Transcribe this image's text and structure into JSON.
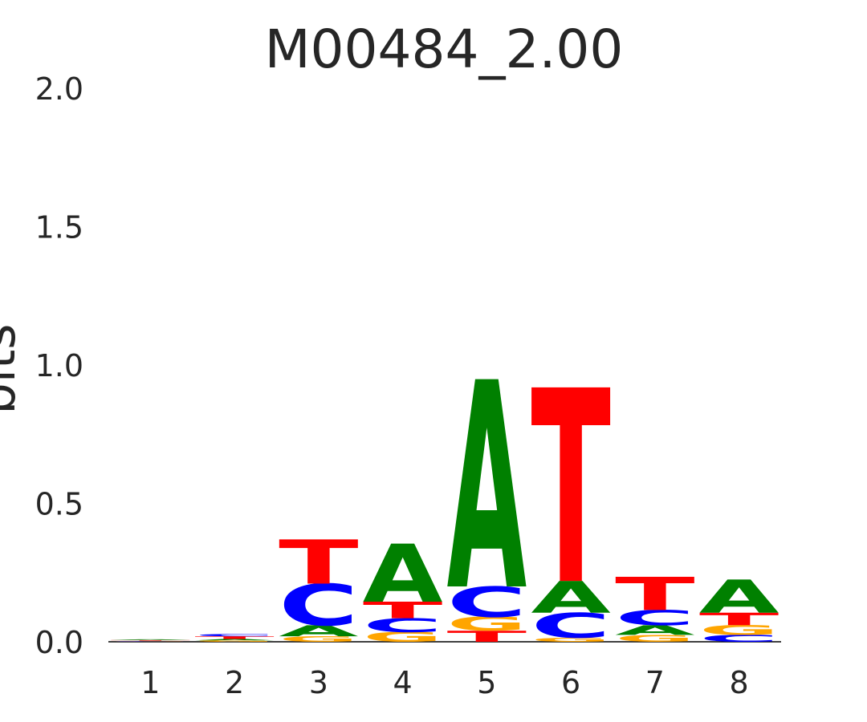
{
  "chart_data": {
    "type": "sequence-logo",
    "title": "M00484_2.00",
    "ylabel": "bits",
    "xlabel": "",
    "ylim": [
      0,
      2
    ],
    "yticks": [
      "0.0",
      "0.5",
      "1.0",
      "1.5",
      "2.0"
    ],
    "ytick_values": [
      0,
      0.5,
      1.0,
      1.5,
      2.0
    ],
    "grid": false,
    "colors": {
      "A": "#008000",
      "C": "#0000ff",
      "G": "#ffa500",
      "T": "#ff0000"
    },
    "positions": [
      {
        "label": "1",
        "letters": [
          {
            "base": "C",
            "bits": 0.002
          },
          {
            "base": "G",
            "bits": 0.002
          },
          {
            "base": "T",
            "bits": 0.002
          },
          {
            "base": "A",
            "bits": 0.003
          }
        ]
      },
      {
        "label": "2",
        "letters": [
          {
            "base": "G",
            "bits": 0.005
          },
          {
            "base": "A",
            "bits": 0.005
          },
          {
            "base": "T",
            "bits": 0.01
          },
          {
            "base": "C",
            "bits": 0.008
          }
        ]
      },
      {
        "label": "3",
        "letters": [
          {
            "base": "G",
            "bits": 0.02
          },
          {
            "base": "A",
            "bits": 0.04
          },
          {
            "base": "C",
            "bits": 0.15
          },
          {
            "base": "T",
            "bits": 0.16
          }
        ]
      },
      {
        "label": "4",
        "letters": [
          {
            "base": "G",
            "bits": 0.035
          },
          {
            "base": "C",
            "bits": 0.05
          },
          {
            "base": "T",
            "bits": 0.06
          },
          {
            "base": "A",
            "bits": 0.21
          }
        ]
      },
      {
        "label": "5",
        "letters": [
          {
            "base": "T",
            "bits": 0.04
          },
          {
            "base": "G",
            "bits": 0.05
          },
          {
            "base": "C",
            "bits": 0.11
          },
          {
            "base": "A",
            "bits": 0.75
          }
        ]
      },
      {
        "label": "6",
        "letters": [
          {
            "base": "G",
            "bits": 0.015
          },
          {
            "base": "C",
            "bits": 0.09
          },
          {
            "base": "A",
            "bits": 0.115
          },
          {
            "base": "T",
            "bits": 0.7
          }
        ]
      },
      {
        "label": "7",
        "letters": [
          {
            "base": "G",
            "bits": 0.025
          },
          {
            "base": "A",
            "bits": 0.035
          },
          {
            "base": "C",
            "bits": 0.055
          },
          {
            "base": "T",
            "bits": 0.12
          }
        ]
      },
      {
        "label": "8",
        "letters": [
          {
            "base": "C",
            "bits": 0.025
          },
          {
            "base": "G",
            "bits": 0.035
          },
          {
            "base": "T",
            "bits": 0.045
          },
          {
            "base": "A",
            "bits": 0.12
          }
        ]
      }
    ]
  }
}
